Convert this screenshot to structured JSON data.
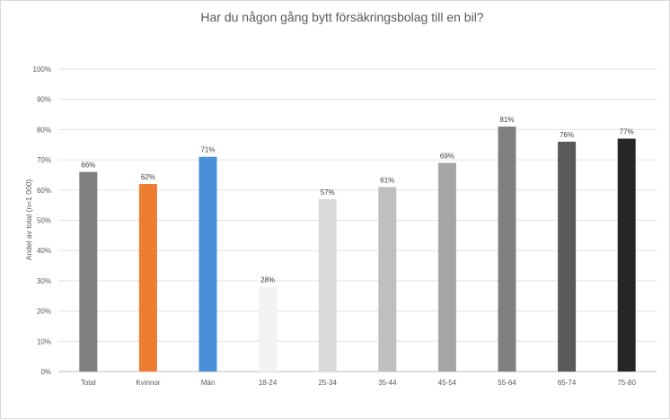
{
  "chart_data": {
    "type": "bar",
    "title": "Har du någon gång bytt försäkringsbolag till en bil?",
    "xlabel": "",
    "ylabel": "Andel av total (n=1 000)",
    "ylim": [
      0,
      100
    ],
    "yticks": [
      "0%",
      "10%",
      "20%",
      "30%",
      "40%",
      "50%",
      "60%",
      "70%",
      "80%",
      "90%",
      "100%"
    ],
    "grid": true,
    "categories": [
      "Total",
      "Kvinnor",
      "Män",
      "18-24",
      "25-34",
      "35-44",
      "45-54",
      "55-64",
      "65-74",
      "75-80"
    ],
    "values": [
      66,
      62,
      71,
      28,
      57,
      61,
      69,
      81,
      76,
      77
    ],
    "data_labels": [
      "66%",
      "62%",
      "71%",
      "28%",
      "57%",
      "61%",
      "69%",
      "81%",
      "76%",
      "77%"
    ],
    "colors": [
      "#7f7f7f",
      "#ed7d31",
      "#4a90d9",
      "#f2f2f2",
      "#d9d9d9",
      "#bfbfbf",
      "#a6a6a6",
      "#808080",
      "#595959",
      "#262626"
    ]
  }
}
